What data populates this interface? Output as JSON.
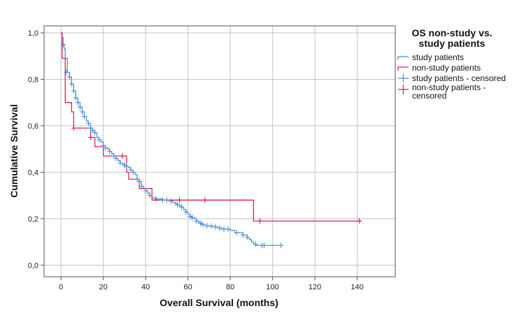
{
  "chart_data": {
    "type": "line",
    "title": "",
    "xlabel": "Overall Survival (months)",
    "ylabel": "Cumulative Survival",
    "xlim": [
      -8,
      158
    ],
    "ylim": [
      -0.05,
      1.03
    ],
    "xticks": [
      0,
      20,
      40,
      60,
      80,
      100,
      120,
      140
    ],
    "yticks": [
      0.0,
      0.2,
      0.4,
      0.6,
      0.8,
      1.0
    ],
    "xtick_labels": [
      "0",
      "20",
      "40",
      "60",
      "80",
      "100",
      "120",
      "140"
    ],
    "ytick_labels": [
      "0,0",
      "0,2",
      "0,4",
      "0,6",
      "0,8",
      "1,0"
    ],
    "grid": true,
    "legend_position": "top-right",
    "legend": {
      "title_lines": [
        "OS non-study vs.",
        "study patients"
      ],
      "entries": [
        {
          "label_lines": [
            "study patients"
          ],
          "symbol": "step",
          "color": "#4a90d9"
        },
        {
          "label_lines": [
            "non-study patients"
          ],
          "symbol": "step",
          "color": "#d9254e"
        },
        {
          "label_lines": [
            "study patients - censored"
          ],
          "symbol": "plus",
          "color": "#4a90d9"
        },
        {
          "label_lines": [
            "non-study patients -",
            "censored"
          ],
          "symbol": "plus",
          "color": "#d9254e"
        }
      ]
    },
    "series": [
      {
        "name": "study patients",
        "color": "#4a90d9",
        "x": [
          0,
          0.5,
          1,
          1.5,
          2,
          3,
          4,
          5,
          6,
          7,
          8,
          9,
          10,
          11,
          12,
          13,
          14,
          15,
          16,
          17,
          18,
          19,
          20,
          21,
          22,
          23,
          24,
          25,
          26,
          27,
          28,
          29,
          30,
          31,
          32,
          33,
          34,
          35,
          36,
          37,
          38,
          39,
          40,
          41,
          42,
          43,
          45,
          48,
          50,
          52,
          53,
          54,
          55,
          56,
          57,
          58,
          59,
          60,
          61,
          62,
          63,
          64,
          65,
          66,
          67,
          68,
          70,
          72,
          74,
          76,
          78,
          80,
          82,
          86,
          88,
          89,
          90,
          91,
          92,
          93,
          105
        ],
        "y": [
          1.0,
          0.98,
          0.95,
          0.93,
          0.89,
          0.83,
          0.81,
          0.78,
          0.75,
          0.72,
          0.7,
          0.68,
          0.66,
          0.64,
          0.62,
          0.61,
          0.59,
          0.58,
          0.57,
          0.55,
          0.54,
          0.53,
          0.515,
          0.505,
          0.5,
          0.49,
          0.48,
          0.47,
          0.46,
          0.45,
          0.44,
          0.435,
          0.43,
          0.425,
          0.42,
          0.41,
          0.4,
          0.39,
          0.37,
          0.36,
          0.34,
          0.33,
          0.32,
          0.31,
          0.3,
          0.29,
          0.285,
          0.28,
          0.28,
          0.275,
          0.27,
          0.265,
          0.26,
          0.255,
          0.25,
          0.24,
          0.23,
          0.22,
          0.21,
          0.205,
          0.2,
          0.19,
          0.185,
          0.18,
          0.175,
          0.17,
          0.168,
          0.165,
          0.16,
          0.155,
          0.155,
          0.15,
          0.14,
          0.13,
          0.12,
          0.11,
          0.1,
          0.09,
          0.085,
          0.085,
          0.085
        ],
        "censored_x": [
          1,
          2.5,
          4,
          5,
          6,
          7,
          8,
          9,
          10,
          11,
          13,
          14,
          15,
          16,
          18,
          20,
          21,
          23,
          25,
          26,
          28,
          30,
          31,
          33,
          34,
          36,
          37,
          38,
          40,
          42,
          45,
          48,
          50,
          52,
          55,
          57,
          59,
          61,
          62,
          64,
          66,
          67,
          69,
          71,
          73,
          75,
          77,
          79,
          83,
          86,
          88,
          92,
          95,
          96,
          104
        ],
        "censored_y": [
          0.95,
          0.83,
          0.81,
          0.78,
          0.75,
          0.72,
          0.7,
          0.68,
          0.66,
          0.64,
          0.61,
          0.59,
          0.58,
          0.57,
          0.54,
          0.515,
          0.505,
          0.49,
          0.47,
          0.46,
          0.44,
          0.43,
          0.425,
          0.41,
          0.4,
          0.37,
          0.36,
          0.34,
          0.32,
          0.3,
          0.285,
          0.28,
          0.28,
          0.275,
          0.26,
          0.25,
          0.23,
          0.21,
          0.205,
          0.19,
          0.18,
          0.175,
          0.17,
          0.168,
          0.165,
          0.16,
          0.155,
          0.155,
          0.14,
          0.13,
          0.12,
          0.09,
          0.085,
          0.085,
          0.085
        ]
      },
      {
        "name": "non-study patients",
        "color": "#d9254e",
        "x": [
          0,
          0.5,
          2,
          5,
          6,
          14,
          16,
          20,
          31,
          32,
          37,
          38,
          43,
          91,
          142
        ],
        "y": [
          1.0,
          0.89,
          0.7,
          0.66,
          0.59,
          0.55,
          0.51,
          0.47,
          0.4,
          0.37,
          0.33,
          0.33,
          0.28,
          0.19,
          0.19
        ],
        "censored_x": [
          6,
          14,
          29,
          56,
          68,
          94,
          141
        ],
        "censored_y": [
          0.59,
          0.55,
          0.47,
          0.28,
          0.28,
          0.19,
          0.19
        ]
      }
    ]
  }
}
